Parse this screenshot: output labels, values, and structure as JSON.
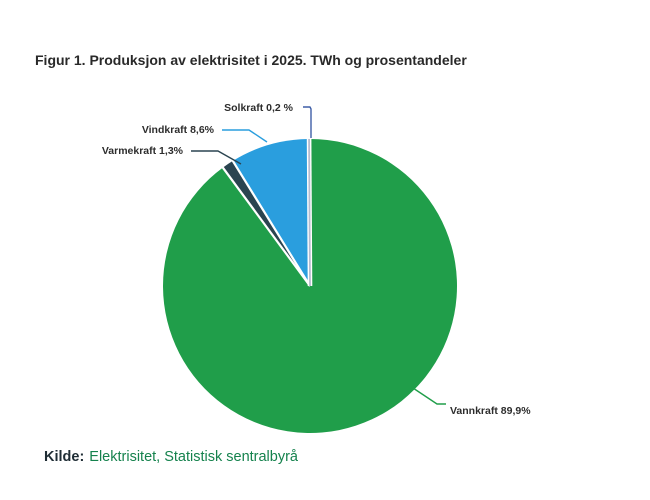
{
  "chart_data": {
    "type": "pie",
    "title": "Figur 1. Produksjon av elektrisitet i 2025. TWh og prosentandeler",
    "direction": "clockwise",
    "start_angle_deg": 0,
    "legend": "none",
    "background_color": "#ffffff",
    "slices": [
      {
        "label": "Vannkraft",
        "value_pct": 89.9,
        "display_label": "Vannkraft 89,9%",
        "color": "#209e4a",
        "leader_color": "#209e4a"
      },
      {
        "label": "Varmekraft",
        "value_pct": 1.3,
        "display_label": "Varmekraft 1,3%",
        "color": "#2a4450",
        "leader_color": "#2a4450"
      },
      {
        "label": "Vindkraft",
        "value_pct": 8.6,
        "display_label": "Vindkraft 8,6%",
        "color": "#2a9ede",
        "leader_color": "#2a9ede"
      },
      {
        "label": "Solkraft",
        "value_pct": 0.2,
        "display_label": "Solkraft 0,2 %",
        "color": "#b6bccf",
        "leader_color": "#3f5fa7"
      }
    ],
    "source": {
      "prefix": "Kilde:",
      "label": "Elektrisitet, Statistisk sentralbyrå"
    }
  }
}
